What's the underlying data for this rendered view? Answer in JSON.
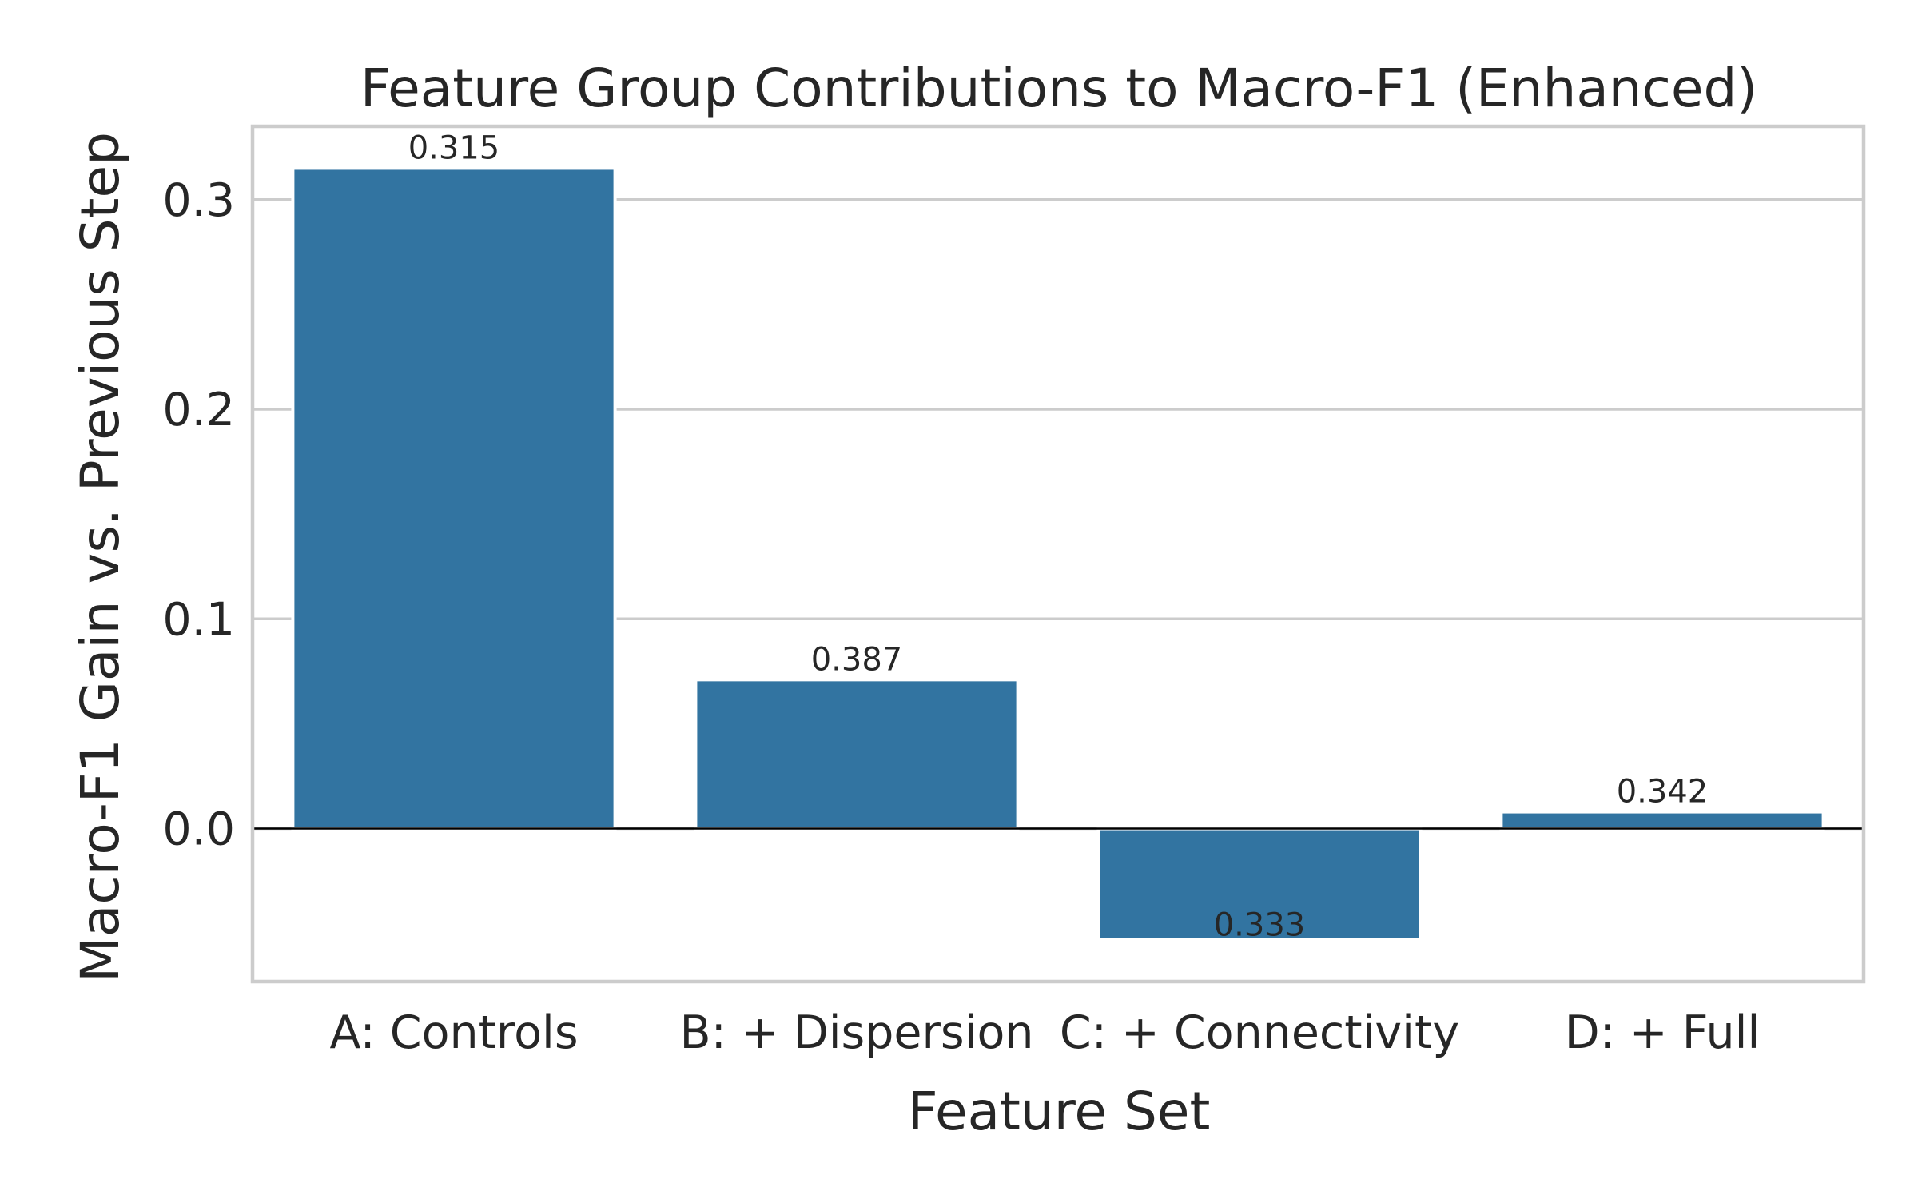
{
  "chart_data": {
    "type": "bar",
    "title": "Feature Group Contributions to Macro-F1 (Enhanced)",
    "xlabel": "Feature Set",
    "ylabel": "Macro-F1 Gain vs. Previous Step",
    "categories": [
      "A: Controls",
      "B: + Dispersion",
      "C: + Connectivity",
      "D: + Full"
    ],
    "values": [
      0.315,
      0.071,
      -0.053,
      0.008
    ],
    "data_labels": [
      "0.315",
      "0.387",
      "0.333",
      "0.342"
    ],
    "ylim": [
      -0.073,
      0.335
    ],
    "yticks": [
      0.0,
      0.1,
      0.2,
      0.3
    ],
    "ytick_labels": [
      "0.0",
      "0.1",
      "0.2",
      "0.3"
    ],
    "grid": "horizontal",
    "zero_line": true,
    "colors": {
      "bar": "#3274a1",
      "grid": "#cccccc",
      "spine": "#cccccc",
      "text": "#262626",
      "zero_line": "#000000"
    }
  }
}
